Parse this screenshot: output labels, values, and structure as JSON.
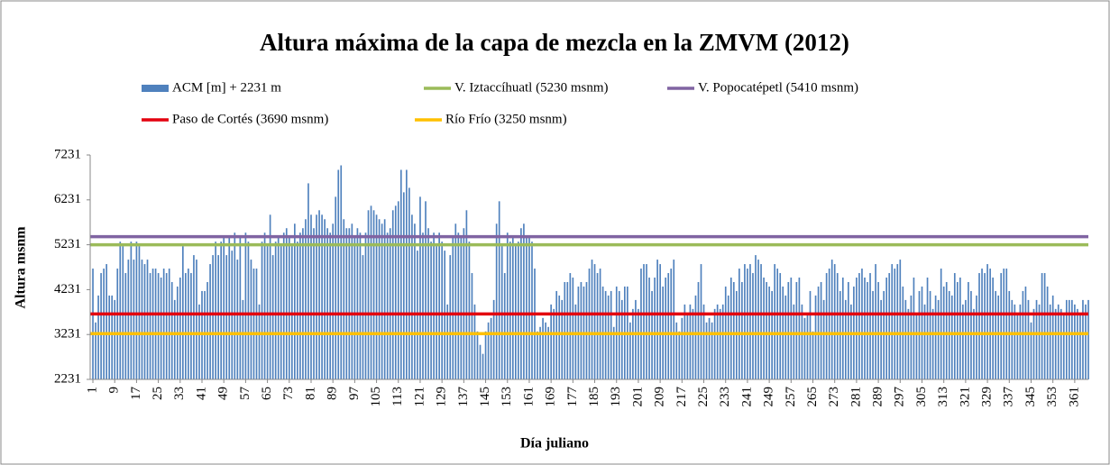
{
  "chart_data": {
    "type": "bar",
    "title": "Altura  máxima de la capa de mezcla en la ZMVM (2012)",
    "x_label": "Día juliano",
    "y_label": "Altura msnm",
    "ylim": [
      2231,
      7231
    ],
    "yticks": [
      2231,
      3231,
      4231,
      5231,
      6231,
      7231
    ],
    "xlim": [
      0,
      366
    ],
    "xticks": [
      1,
      9,
      17,
      25,
      33,
      41,
      49,
      57,
      65,
      73,
      81,
      89,
      97,
      105,
      113,
      121,
      129,
      137,
      145,
      153,
      161,
      169,
      177,
      185,
      193,
      201,
      209,
      217,
      225,
      233,
      241,
      249,
      257,
      265,
      273,
      281,
      289,
      297,
      305,
      313,
      321,
      329,
      337,
      345,
      353,
      361
    ],
    "x": [
      1,
      2,
      3,
      4,
      5,
      6,
      7,
      8,
      9,
      10,
      11,
      12,
      13,
      14,
      15,
      16,
      17,
      18,
      19,
      20,
      21,
      22,
      23,
      24,
      25,
      26,
      27,
      28,
      29,
      30,
      31,
      32,
      33,
      34,
      35,
      36,
      37,
      38,
      39,
      40,
      41,
      42,
      43,
      44,
      45,
      46,
      47,
      48,
      49,
      50,
      51,
      52,
      53,
      54,
      55,
      56,
      57,
      58,
      59,
      60,
      61,
      62,
      63,
      64,
      65,
      66,
      67,
      68,
      69,
      70,
      71,
      72,
      73,
      74,
      75,
      76,
      77,
      78,
      79,
      80,
      81,
      82,
      83,
      84,
      85,
      86,
      87,
      88,
      89,
      90,
      91,
      92,
      93,
      94,
      95,
      96,
      97,
      98,
      99,
      100,
      101,
      102,
      103,
      104,
      105,
      106,
      107,
      108,
      109,
      110,
      111,
      112,
      113,
      114,
      115,
      116,
      117,
      118,
      119,
      120,
      121,
      122,
      123,
      124,
      125,
      126,
      127,
      128,
      129,
      130,
      131,
      132,
      133,
      134,
      135,
      136,
      137,
      138,
      139,
      140,
      141,
      142,
      143,
      144,
      145,
      146,
      147,
      148,
      149,
      150,
      151,
      152,
      153,
      154,
      155,
      156,
      157,
      158,
      159,
      160,
      161,
      162,
      163,
      164,
      165,
      166,
      167,
      168,
      169,
      170,
      171,
      172,
      173,
      174,
      175,
      176,
      177,
      178,
      179,
      180,
      181,
      182,
      183,
      184,
      185,
      186,
      187,
      188,
      189,
      190,
      191,
      192,
      193,
      194,
      195,
      196,
      197,
      198,
      199,
      200,
      201,
      202,
      203,
      204,
      205,
      206,
      207,
      208,
      209,
      210,
      211,
      212,
      213,
      214,
      215,
      216,
      217,
      218,
      219,
      220,
      221,
      222,
      223,
      224,
      225,
      226,
      227,
      228,
      229,
      230,
      231,
      232,
      233,
      234,
      235,
      236,
      237,
      238,
      239,
      240,
      241,
      242,
      243,
      244,
      245,
      246,
      247,
      248,
      249,
      250,
      251,
      252,
      253,
      254,
      255,
      256,
      257,
      258,
      259,
      260,
      261,
      262,
      263,
      264,
      265,
      266,
      267,
      268,
      269,
      270,
      271,
      272,
      273,
      274,
      275,
      276,
      277,
      278,
      279,
      280,
      281,
      282,
      283,
      284,
      285,
      286,
      287,
      288,
      289,
      290,
      291,
      292,
      293,
      294,
      295,
      296,
      297,
      298,
      299,
      300,
      301,
      302,
      303,
      304,
      305,
      306,
      307,
      308,
      309,
      310,
      311,
      312,
      313,
      314,
      315,
      316,
      317,
      318,
      319,
      320,
      321,
      322,
      323,
      324,
      325,
      326,
      327,
      328,
      329,
      330,
      331,
      332,
      333,
      334,
      335,
      336,
      337,
      338,
      339,
      340,
      341,
      342,
      343,
      344,
      345,
      346,
      347,
      348,
      349,
      350,
      351,
      352,
      353,
      354,
      355,
      356,
      357,
      358,
      359,
      360,
      361,
      362,
      363,
      364,
      365,
      366
    ],
    "series": [
      {
        "name": "ACM [m] + 2231 m",
        "type": "bar",
        "color": "#4f81bd",
        "values": [
          4700,
          3500,
          4100,
          4600,
          4700,
          4800,
          4100,
          4100,
          4000,
          4700,
          5300,
          5200,
          4600,
          4900,
          5300,
          4900,
          5300,
          5200,
          4900,
          4800,
          4900,
          4600,
          4700,
          4700,
          4600,
          4500,
          4700,
          4600,
          4700,
          4400,
          4000,
          4300,
          4500,
          5200,
          4600,
          4700,
          4600,
          5000,
          4900,
          3900,
          4200,
          4200,
          4400,
          4800,
          5000,
          5300,
          5000,
          5300,
          5400,
          5000,
          5400,
          5100,
          5500,
          4900,
          5400,
          4000,
          5500,
          5300,
          4900,
          4700,
          4700,
          3900,
          5300,
          5500,
          5200,
          5900,
          5000,
          5300,
          5400,
          5200,
          5500,
          5600,
          5400,
          5200,
          5700,
          5300,
          5500,
          5600,
          5800,
          6600,
          5900,
          5600,
          5900,
          6000,
          5900,
          5800,
          5600,
          5500,
          5700,
          6300,
          6900,
          7000,
          5800,
          5600,
          5600,
          5700,
          5400,
          5600,
          5500,
          5000,
          5500,
          6000,
          6100,
          6000,
          5900,
          5800,
          5700,
          5800,
          5500,
          5600,
          6000,
          6100,
          6200,
          6900,
          6400,
          6900,
          6500,
          5900,
          5700,
          5100,
          6300,
          5500,
          6200,
          5600,
          5300,
          5500,
          5200,
          5500,
          5300,
          5100,
          3900,
          5000,
          5400,
          5700,
          5500,
          5400,
          5600,
          6000,
          5300,
          4600,
          3900,
          3300,
          3000,
          2800,
          3300,
          3500,
          3600,
          4000,
          5700,
          6200,
          5200,
          4600,
          5500,
          5300,
          5400,
          5200,
          5300,
          5600,
          5700,
          5400,
          5400,
          5300,
          4700,
          3300,
          3400,
          3600,
          3500,
          3400,
          3900,
          3800,
          4200,
          4100,
          4000,
          4400,
          4400,
          4600,
          4500,
          3900,
          4300,
          4400,
          4300,
          4400,
          4700,
          4900,
          4800,
          4600,
          4700,
          4300,
          4200,
          4100,
          4200,
          3400,
          4300,
          4200,
          4000,
          4300,
          4300,
          3500,
          3800,
          4000,
          3800,
          4700,
          4800,
          4800,
          4500,
          4200,
          4500,
          4900,
          4800,
          4300,
          4500,
          4600,
          4700,
          4900,
          3500,
          3300,
          3600,
          3900,
          3700,
          3900,
          3800,
          4100,
          4400,
          4800,
          3900,
          3500,
          3600,
          3500,
          3800,
          3900,
          3800,
          3900,
          4300,
          4100,
          4500,
          4400,
          4200,
          4700,
          4400,
          4800,
          4700,
          4800,
          4600,
          5000,
          4900,
          4800,
          4500,
          4400,
          4300,
          4200,
          4800,
          4700,
          4600,
          4300,
          4100,
          4400,
          4500,
          3900,
          4400,
          4500,
          3900,
          3600,
          3700,
          4200,
          3300,
          4100,
          4300,
          4400,
          4000,
          4600,
          4700,
          4900,
          4800,
          4600,
          4200,
          4500,
          4000,
          4400,
          3900,
          4300,
          4500,
          4600,
          4700,
          4500,
          4400,
          4600,
          4200,
          4800,
          4400,
          4000,
          4200,
          4500,
          4600,
          4800,
          4700,
          4800,
          4900,
          4300,
          4000,
          3800,
          4100,
          4500,
          3700,
          4200,
          4300,
          3900,
          4500,
          4200,
          3800,
          4100,
          4000,
          4700,
          4300,
          4400,
          4200,
          4100,
          4600,
          4400,
          4500,
          3900,
          4000,
          4400,
          4200,
          3800,
          4100,
          4600,
          4700,
          4600,
          4800,
          4700,
          4500,
          4200,
          4100,
          4600,
          4700,
          4700,
          4200,
          4000,
          3900,
          3700,
          3900,
          4200,
          4300,
          4000,
          3500,
          3800,
          4000,
          3900,
          4600,
          4600,
          4300,
          3900,
          4100,
          3800,
          3900,
          3800,
          3700,
          4000,
          4000,
          4000,
          3900,
          3800,
          3700,
          4000,
          3900,
          4000
        ]
      },
      {
        "name": "V. Iztaccíhuatl (5230 msnm)",
        "type": "hline",
        "color": "#9bbb59",
        "value": 5230
      },
      {
        "name": "V. Popocatépetl (5410 msnm)",
        "type": "hline",
        "color": "#8064a2",
        "value": 5410
      },
      {
        "name": "Paso de Cortés (3690 msnm)",
        "type": "hline",
        "color": "#e3000f",
        "value": 3690
      },
      {
        "name": "Río Frío (3250 msnm)",
        "type": "hline",
        "color": "#ffc000",
        "value": 3250
      }
    ],
    "grid": false
  }
}
